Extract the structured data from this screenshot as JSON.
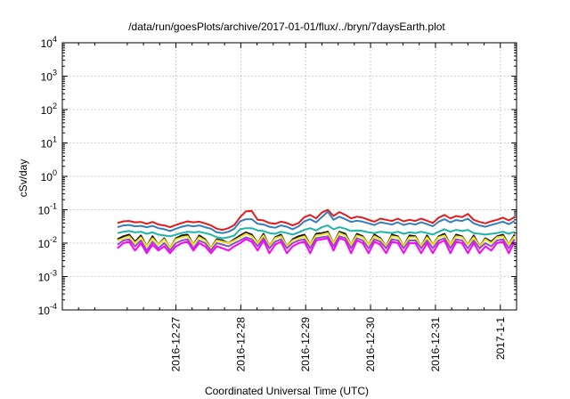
{
  "chart_data": {
    "type": "line",
    "title": "/data/run/goesPlots/archive/2017-01-01/flux/../bryn/7daysEarth.plot",
    "xlabel": "Coordinated Universal Time (UTC)",
    "ylabel": "cSv/day",
    "yscale": "log",
    "ylim": [
      0.0001,
      10000
    ],
    "xlim": [
      -1.75,
      5.25
    ],
    "grid": true,
    "legend": "none",
    "x_ticks": [
      {
        "pos": 0,
        "label": "2016-12-27"
      },
      {
        "pos": 1,
        "label": "2016-12-28"
      },
      {
        "pos": 2,
        "label": "2016-12-29"
      },
      {
        "pos": 3,
        "label": "2016-12-30"
      },
      {
        "pos": 4,
        "label": "2016-12-31"
      },
      {
        "pos": 5,
        "label": "2017-1-1"
      }
    ],
    "y_ticks": [
      {
        "exp": "-4",
        "value": 0.0001
      },
      {
        "exp": "-3",
        "value": 0.001
      },
      {
        "exp": "-2",
        "value": 0.01
      },
      {
        "exp": "-1",
        "value": 0.1
      },
      {
        "exp": "0",
        "value": 1
      },
      {
        "exp": "1",
        "value": 10
      },
      {
        "exp": "2",
        "value": 100
      },
      {
        "exp": "3",
        "value": 1000
      },
      {
        "exp": "4",
        "value": 10000
      }
    ],
    "x": [
      -0.9,
      -0.81,
      -0.72,
      -0.63,
      -0.54,
      -0.45,
      -0.36,
      -0.27,
      -0.18,
      -0.09,
      0,
      0.09,
      0.18,
      0.27,
      0.36,
      0.45,
      0.54,
      0.63,
      0.72,
      0.81,
      0.9,
      0.99,
      1.08,
      1.17,
      1.26,
      1.35,
      1.44,
      1.53,
      1.62,
      1.71,
      1.8,
      1.89,
      1.98,
      2.07,
      2.16,
      2.25,
      2.34,
      2.43,
      2.52,
      2.61,
      2.7,
      2.79,
      2.88,
      2.97,
      3.06,
      3.15,
      3.24,
      3.33,
      3.42,
      3.51,
      3.6,
      3.69,
      3.78,
      3.87,
      3.96,
      4.05,
      4.14,
      4.23,
      4.32,
      4.41,
      4.5,
      4.59,
      4.68,
      4.77,
      4.86,
      4.95,
      5.04,
      5.13,
      5.22
    ],
    "series": [
      {
        "color": "#e41a1c",
        "values": [
          0.04,
          0.045,
          0.046,
          0.042,
          0.043,
          0.038,
          0.043,
          0.036,
          0.034,
          0.03,
          0.035,
          0.04,
          0.045,
          0.042,
          0.044,
          0.039,
          0.034,
          0.027,
          0.025,
          0.028,
          0.035,
          0.06,
          0.09,
          0.092,
          0.05,
          0.048,
          0.04,
          0.038,
          0.044,
          0.04,
          0.034,
          0.04,
          0.06,
          0.07,
          0.055,
          0.082,
          0.1,
          0.065,
          0.085,
          0.07,
          0.055,
          0.062,
          0.058,
          0.05,
          0.044,
          0.054,
          0.05,
          0.046,
          0.054,
          0.045,
          0.05,
          0.046,
          0.054,
          0.047,
          0.04,
          0.058,
          0.07,
          0.055,
          0.065,
          0.06,
          0.075,
          0.05,
          0.043,
          0.039,
          0.045,
          0.05,
          0.058,
          0.048,
          0.06
        ]
      },
      {
        "color": "#377eb8",
        "values": [
          0.03,
          0.034,
          0.035,
          0.032,
          0.033,
          0.03,
          0.033,
          0.028,
          0.026,
          0.023,
          0.027,
          0.031,
          0.034,
          0.032,
          0.034,
          0.03,
          0.027,
          0.021,
          0.02,
          0.022,
          0.027,
          0.045,
          0.052,
          0.052,
          0.038,
          0.036,
          0.031,
          0.029,
          0.034,
          0.031,
          0.026,
          0.032,
          0.045,
          0.052,
          0.042,
          0.06,
          0.088,
          0.05,
          0.062,
          0.052,
          0.043,
          0.047,
          0.044,
          0.039,
          0.035,
          0.042,
          0.039,
          0.036,
          0.042,
          0.035,
          0.039,
          0.036,
          0.042,
          0.037,
          0.032,
          0.044,
          0.052,
          0.042,
          0.049,
          0.046,
          0.054,
          0.039,
          0.034,
          0.031,
          0.035,
          0.039,
          0.044,
          0.037,
          0.046
        ]
      },
      {
        "color": "#1fb5a6",
        "values": [
          0.02,
          0.022,
          0.023,
          0.021,
          0.022,
          0.019,
          0.021,
          0.018,
          0.017,
          0.016,
          0.018,
          0.02,
          0.022,
          0.021,
          0.022,
          0.02,
          0.018,
          0.015,
          0.014,
          0.015,
          0.017,
          0.026,
          0.028,
          0.028,
          0.024,
          0.023,
          0.02,
          0.019,
          0.022,
          0.02,
          0.018,
          0.021,
          0.025,
          0.028,
          0.024,
          0.03,
          0.034,
          0.026,
          0.03,
          0.027,
          0.023,
          0.024,
          0.023,
          0.021,
          0.02,
          0.022,
          0.021,
          0.02,
          0.022,
          0.019,
          0.021,
          0.02,
          0.022,
          0.02,
          0.018,
          0.022,
          0.026,
          0.022,
          0.025,
          0.023,
          0.025,
          0.02,
          0.019,
          0.018,
          0.019,
          0.02,
          0.022,
          0.019,
          0.022
        ]
      },
      {
        "color": "#111111",
        "values": [
          0.013,
          0.016,
          0.018,
          0.011,
          0.017,
          0.008,
          0.016,
          0.009,
          0.014,
          0.007,
          0.014,
          0.017,
          0.018,
          0.009,
          0.017,
          0.013,
          0.007,
          0.013,
          0.012,
          0.01,
          0.013,
          0.017,
          0.021,
          0.018,
          0.01,
          0.019,
          0.008,
          0.015,
          0.018,
          0.008,
          0.013,
          0.016,
          0.018,
          0.009,
          0.019,
          0.02,
          0.022,
          0.01,
          0.022,
          0.019,
          0.009,
          0.019,
          0.016,
          0.009,
          0.018,
          0.014,
          0.008,
          0.018,
          0.016,
          0.008,
          0.017,
          0.016,
          0.008,
          0.017,
          0.009,
          0.016,
          0.019,
          0.009,
          0.018,
          0.016,
          0.009,
          0.017,
          0.008,
          0.014,
          0.011,
          0.016,
          0.018,
          0.009,
          0.018
        ]
      },
      {
        "color": "#f0e020",
        "values": [
          0.012,
          0.014,
          0.016,
          0.01,
          0.015,
          0.008,
          0.014,
          0.009,
          0.013,
          0.007,
          0.013,
          0.015,
          0.016,
          0.009,
          0.015,
          0.012,
          0.007,
          0.012,
          0.011,
          0.01,
          0.012,
          0.015,
          0.019,
          0.016,
          0.01,
          0.017,
          0.008,
          0.014,
          0.016,
          0.008,
          0.012,
          0.014,
          0.016,
          0.009,
          0.017,
          0.018,
          0.02,
          0.01,
          0.02,
          0.017,
          0.009,
          0.017,
          0.015,
          0.009,
          0.016,
          0.013,
          0.008,
          0.016,
          0.015,
          0.008,
          0.015,
          0.015,
          0.008,
          0.015,
          0.009,
          0.015,
          0.017,
          0.009,
          0.016,
          0.015,
          0.009,
          0.015,
          0.008,
          0.013,
          0.01,
          0.015,
          0.016,
          0.009,
          0.016
        ]
      },
      {
        "color": "#8a4fc7",
        "values": [
          0.009,
          0.012,
          0.013,
          0.008,
          0.012,
          0.006,
          0.011,
          0.007,
          0.01,
          0.006,
          0.01,
          0.012,
          0.013,
          0.007,
          0.012,
          0.01,
          0.006,
          0.01,
          0.009,
          0.008,
          0.01,
          0.012,
          0.015,
          0.013,
          0.008,
          0.014,
          0.007,
          0.011,
          0.013,
          0.007,
          0.01,
          0.012,
          0.013,
          0.007,
          0.014,
          0.015,
          0.016,
          0.008,
          0.016,
          0.014,
          0.007,
          0.014,
          0.012,
          0.007,
          0.013,
          0.011,
          0.007,
          0.013,
          0.012,
          0.007,
          0.012,
          0.012,
          0.007,
          0.012,
          0.007,
          0.012,
          0.014,
          0.007,
          0.013,
          0.012,
          0.007,
          0.012,
          0.007,
          0.01,
          0.008,
          0.012,
          0.013,
          0.007,
          0.013
        ]
      },
      {
        "color": "#ff00ff",
        "values": [
          0.007,
          0.01,
          0.011,
          0.006,
          0.01,
          0.005,
          0.009,
          0.006,
          0.008,
          0.005,
          0.008,
          0.01,
          0.011,
          0.006,
          0.01,
          0.008,
          0.005,
          0.008,
          0.007,
          0.006,
          0.008,
          0.01,
          0.013,
          0.011,
          0.006,
          0.012,
          0.005,
          0.009,
          0.011,
          0.005,
          0.008,
          0.01,
          0.011,
          0.005,
          0.012,
          0.013,
          0.014,
          0.006,
          0.014,
          0.012,
          0.005,
          0.012,
          0.01,
          0.005,
          0.011,
          0.009,
          0.005,
          0.011,
          0.01,
          0.005,
          0.01,
          0.01,
          0.005,
          0.01,
          0.005,
          0.01,
          0.012,
          0.005,
          0.011,
          0.01,
          0.005,
          0.01,
          0.005,
          0.008,
          0.006,
          0.01,
          0.011,
          0.005,
          0.011
        ]
      }
    ]
  }
}
